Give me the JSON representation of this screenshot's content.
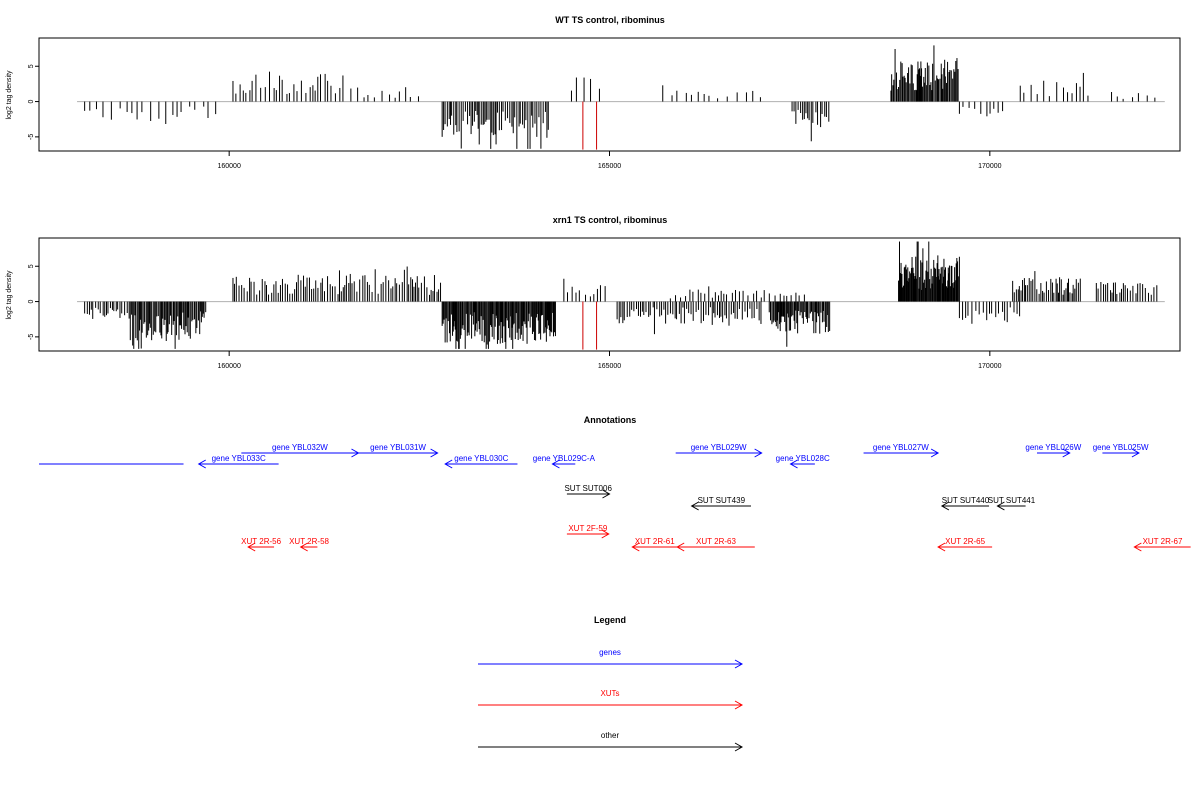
{
  "colors": {
    "gene": "#0000ff",
    "xut": "#ff0000",
    "other": "#000000",
    "baseline": "#b0b0b0",
    "signal": "#000000",
    "highlight": "#cc0000"
  },
  "chart_data": [
    {
      "type": "bar",
      "title": "WT TS control, ribominus",
      "ylabel": "log2 tag density",
      "xlim": [
        157500,
        172500
      ],
      "ylim": [
        -7,
        9
      ],
      "x_ticks": [
        160000,
        165000,
        170000
      ],
      "x_tick_labels": [
        "160000",
        "165000",
        "170000"
      ],
      "y_ticks": [
        -5,
        0,
        5
      ],
      "y_tick_labels": [
        "-5",
        "0",
        "5"
      ],
      "highlight_positions": [
        164650,
        164830
      ],
      "highlight_values": [
        -6.8,
        -6.8
      ],
      "segments": [
        {
          "x0": 158100,
          "x1": 159900,
          "sign": -1,
          "amp": 2.8,
          "step": 85
        },
        {
          "x0": 160050,
          "x1": 161500,
          "sign": 1,
          "amp": 4.0,
          "step": 45
        },
        {
          "x0": 161600,
          "x1": 162500,
          "sign": 1,
          "amp": 2.0,
          "step": 80
        },
        {
          "x0": 162800,
          "x1": 164200,
          "sign": -1,
          "amp": 5.0,
          "step": 22
        },
        {
          "x0": 164500,
          "x1": 164900,
          "sign": 1,
          "amp": 3.5,
          "step": 90
        },
        {
          "x0": 165700,
          "x1": 167000,
          "sign": 1,
          "amp": 1.6,
          "step": 95
        },
        {
          "x0": 167400,
          "x1": 167900,
          "sign": -1,
          "amp": 3.8,
          "step": 30
        },
        {
          "x0": 168700,
          "x1": 169600,
          "sign": 1,
          "amp": 6.0,
          "step": 14
        },
        {
          "x0": 169600,
          "x1": 170200,
          "sign": -1,
          "amp": 2.2,
          "step": 60
        },
        {
          "x0": 170400,
          "x1": 171300,
          "sign": 1,
          "amp": 3.0,
          "step": 70
        },
        {
          "x0": 171600,
          "x1": 172200,
          "sign": 1,
          "amp": 1.4,
          "step": 110
        }
      ]
    },
    {
      "type": "bar",
      "title": "xrn1 TS control, ribominus",
      "ylabel": "log2 tag density",
      "xlim": [
        157500,
        172500
      ],
      "ylim": [
        -7,
        9
      ],
      "x_ticks": [
        160000,
        165000,
        170000
      ],
      "x_tick_labels": [
        "160000",
        "165000",
        "170000"
      ],
      "y_ticks": [
        -5,
        0,
        5
      ],
      "y_tick_labels": [
        "-5",
        "0",
        "5"
      ],
      "highlight_positions": [
        164650,
        164830
      ],
      "highlight_values": [
        -6.8,
        -6.8
      ],
      "segments": [
        {
          "x0": 158100,
          "x1": 158700,
          "sign": -1,
          "amp": 2.5,
          "step": 28
        },
        {
          "x0": 158700,
          "x1": 159700,
          "sign": -1,
          "amp": 5.5,
          "step": 16
        },
        {
          "x0": 160050,
          "x1": 162800,
          "sign": 1,
          "amp": 3.8,
          "step": 30
        },
        {
          "x0": 162800,
          "x1": 164300,
          "sign": -1,
          "amp": 6.0,
          "step": 12
        },
        {
          "x0": 164400,
          "x1": 165000,
          "sign": 1,
          "amp": 2.5,
          "step": 60
        },
        {
          "x0": 165100,
          "x1": 167000,
          "sign": -1,
          "amp": 3.2,
          "step": 28
        },
        {
          "x0": 165800,
          "x1": 167600,
          "sign": 1,
          "amp": 1.8,
          "step": 55
        },
        {
          "x0": 167100,
          "x1": 167900,
          "sign": -1,
          "amp": 4.5,
          "step": 14
        },
        {
          "x0": 168800,
          "x1": 169600,
          "sign": 1,
          "amp": 6.5,
          "step": 10
        },
        {
          "x0": 169600,
          "x1": 170400,
          "sign": -1,
          "amp": 3.2,
          "step": 40
        },
        {
          "x0": 170300,
          "x1": 171200,
          "sign": 1,
          "amp": 3.5,
          "step": 22
        },
        {
          "x0": 171400,
          "x1": 172200,
          "sign": 1,
          "amp": 2.8,
          "step": 30
        }
      ]
    }
  ],
  "annotations": {
    "title": "Annotations",
    "features": [
      {
        "label": "",
        "type": "gene",
        "start": 157500,
        "end": 159400,
        "strand": "none",
        "row": 1
      },
      {
        "label": "gene YBL033C",
        "type": "gene",
        "start": 159600,
        "end": 160650,
        "strand": "-",
        "row": 1
      },
      {
        "label": "gene YBL032W",
        "type": "gene",
        "start": 160160,
        "end": 161700,
        "strand": "+",
        "row": 0
      },
      {
        "label": "gene YBL031W",
        "type": "gene",
        "start": 161700,
        "end": 162740,
        "strand": "+",
        "row": 0
      },
      {
        "label": "gene YBL030C",
        "type": "gene",
        "start": 162840,
        "end": 163790,
        "strand": "-",
        "row": 1
      },
      {
        "label": "gene YBL029C-A",
        "type": "gene",
        "start": 164250,
        "end": 164550,
        "strand": "-",
        "row": 1
      },
      {
        "label": "gene YBL029W",
        "type": "gene",
        "start": 165870,
        "end": 167000,
        "strand": "+",
        "row": 0
      },
      {
        "label": "gene YBL028C",
        "type": "gene",
        "start": 167380,
        "end": 167700,
        "strand": "-",
        "row": 1
      },
      {
        "label": "gene YBL027W",
        "type": "gene",
        "start": 168340,
        "end": 169320,
        "strand": "+",
        "row": 0
      },
      {
        "label": "gene YBL026W",
        "type": "gene",
        "start": 170620,
        "end": 171050,
        "strand": "+",
        "row": 0
      },
      {
        "label": "gene YBL025W",
        "type": "gene",
        "start": 171480,
        "end": 171960,
        "strand": "+",
        "row": 0
      },
      {
        "label": "SUT SUT006",
        "type": "other",
        "start": 164440,
        "end": 165000,
        "strand": "+",
        "row": 2
      },
      {
        "label": "SUT SUT439",
        "type": "other",
        "start": 166080,
        "end": 166860,
        "strand": "-",
        "row": 3
      },
      {
        "label": "SUT SUT440",
        "type": "other",
        "start": 169370,
        "end": 169990,
        "strand": "-",
        "row": 3
      },
      {
        "label": "SUT SUT441",
        "type": "other",
        "start": 170100,
        "end": 170470,
        "strand": "-",
        "row": 3
      },
      {
        "label": "XUT 2R-56",
        "type": "xut",
        "start": 160250,
        "end": 160590,
        "strand": "-",
        "row": 5
      },
      {
        "label": "XUT 2R-58",
        "type": "xut",
        "start": 160940,
        "end": 161160,
        "strand": "-",
        "row": 5
      },
      {
        "label": "XUT 2F-59",
        "type": "xut",
        "start": 164440,
        "end": 164990,
        "strand": "+",
        "row": 4
      },
      {
        "label": "XUT 2R-61",
        "type": "xut",
        "start": 165300,
        "end": 165890,
        "strand": "-",
        "row": 5
      },
      {
        "label": "XUT 2R-63",
        "type": "xut",
        "start": 165890,
        "end": 166910,
        "strand": "-",
        "row": 5
      },
      {
        "label": "XUT 2R-65",
        "type": "xut",
        "start": 169320,
        "end": 170030,
        "strand": "-",
        "row": 5
      },
      {
        "label": "XUT 2R-67",
        "type": "xut",
        "start": 171900,
        "end": 172640,
        "strand": "-",
        "row": 5
      }
    ]
  },
  "legend": {
    "title": "Legend",
    "items": [
      {
        "label": "genes",
        "type": "gene"
      },
      {
        "label": "XUTs",
        "type": "xut"
      },
      {
        "label": "other",
        "type": "other"
      }
    ]
  }
}
